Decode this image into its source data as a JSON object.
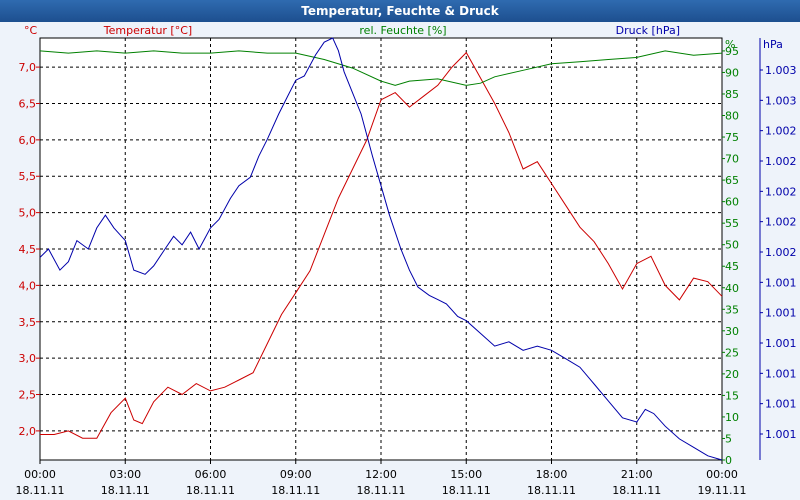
{
  "window": {
    "title": "Temperatur, Feuchte & Druck"
  },
  "colors": {
    "temperature": "#cc0000",
    "humidity": "#008000",
    "pressure": "#0000aa",
    "title_bar": "#1d4f8f"
  },
  "chart_data": {
    "type": "line",
    "title": "Temperatur, Feuchte & Druck",
    "grid": true,
    "x_axis": {
      "ticks": [
        {
          "time": "00:00",
          "date": "18.11.11"
        },
        {
          "time": "03:00",
          "date": "18.11.11"
        },
        {
          "time": "06:00",
          "date": "18.11.11"
        },
        {
          "time": "09:00",
          "date": "18.11.11"
        },
        {
          "time": "12:00",
          "date": "18.11.11"
        },
        {
          "time": "15:00",
          "date": "18.11.11"
        },
        {
          "time": "18:00",
          "date": "18.11.11"
        },
        {
          "time": "21:00",
          "date": "18.11.11"
        },
        {
          "time": "00:00",
          "date": "19.11.11"
        }
      ],
      "range_hours": [
        0,
        24
      ]
    },
    "axes": {
      "temperature": {
        "unit": "°C",
        "label": "Temperatur [°C]",
        "ylim": [
          1.6,
          7.4
        ],
        "ticks": [
          "2,0",
          "2,5",
          "3,0",
          "3,5",
          "4,0",
          "4,5",
          "5,0",
          "5,5",
          "6,0",
          "6,5",
          "7,0"
        ]
      },
      "humidity": {
        "unit": "%",
        "label": "rel. Feuchte [%]",
        "ylim": [
          0,
          98
        ],
        "ticks": [
          "0",
          "5",
          "10",
          "15",
          "20",
          "25",
          "30",
          "35",
          "40",
          "45",
          "50",
          "55",
          "60",
          "65",
          "70",
          "75",
          "80",
          "85",
          "90",
          "95"
        ]
      },
      "pressure": {
        "unit": "hPa",
        "label": "Druck [hPa]",
        "ylim": [
          0,
          1
        ],
        "ticks": [
          "1.001",
          "1.001",
          "1.001",
          "1.001",
          "1.001",
          "1.001",
          "1.002",
          "1.002",
          "1.002",
          "1.002",
          "1.002",
          "1.003",
          "1.003"
        ]
      }
    },
    "series": [
      {
        "name": "Temperatur [°C]",
        "axis": "temperature",
        "x": [
          0,
          0.5,
          1,
          1.5,
          2,
          2.5,
          3,
          3.3,
          3.6,
          4,
          4.5,
          5,
          5.5,
          6,
          6.5,
          7,
          7.5,
          8,
          8.5,
          9,
          9.5,
          10,
          10.5,
          11,
          11.5,
          12,
          12.5,
          13,
          13.5,
          14,
          14.5,
          15,
          15.5,
          16,
          16.5,
          17,
          17.5,
          18,
          18.5,
          19,
          19.5,
          20,
          20.5,
          21,
          21.5,
          22,
          22.5,
          23,
          23.5,
          24
        ],
        "values": [
          1.95,
          1.95,
          2.0,
          1.9,
          1.9,
          2.25,
          2.45,
          2.15,
          2.1,
          2.4,
          2.6,
          2.5,
          2.65,
          2.55,
          2.6,
          2.7,
          2.8,
          3.2,
          3.6,
          3.9,
          4.2,
          4.7,
          5.2,
          5.6,
          6.0,
          6.55,
          6.65,
          6.45,
          6.6,
          6.75,
          7.0,
          7.2,
          6.85,
          6.5,
          6.1,
          5.6,
          5.7,
          5.4,
          5.1,
          4.8,
          4.6,
          4.3,
          3.95,
          4.3,
          4.4,
          4.0,
          3.8,
          4.1,
          4.05,
          3.85
        ]
      },
      {
        "name": "rel. Feuchte [%]",
        "axis": "humidity",
        "x": [
          0,
          1,
          2,
          3,
          4,
          5,
          6,
          7,
          8,
          9,
          10,
          11,
          12,
          12.5,
          13,
          14,
          15,
          15.5,
          16,
          17,
          18,
          19,
          20,
          21,
          22,
          23,
          24
        ],
        "values": [
          95,
          94.5,
          95,
          94.5,
          95,
          94.5,
          94.5,
          95,
          94.5,
          94.5,
          93,
          91,
          88,
          87,
          88,
          88.5,
          87,
          87.5,
          89,
          90.5,
          92,
          92.5,
          93,
          93.5,
          95,
          94,
          94.5
        ]
      },
      {
        "name": "Druck [hPa]",
        "axis": "pressure",
        "x": [
          0,
          0.3,
          0.7,
          1,
          1.3,
          1.7,
          2,
          2.3,
          2.6,
          3,
          3.3,
          3.7,
          4,
          4.4,
          4.7,
          5,
          5.3,
          5.6,
          6,
          6.3,
          6.7,
          7,
          7.4,
          7.7,
          8,
          8.4,
          8.7,
          9,
          9.3,
          9.7,
          10,
          10.3,
          10.5,
          10.7,
          11,
          11.3,
          11.7,
          12,
          12.3,
          12.7,
          13,
          13.3,
          13.7,
          14,
          14.3,
          14.7,
          15,
          15.5,
          16,
          16.5,
          17,
          17.5,
          18,
          18.5,
          19,
          19.5,
          20,
          20.5,
          21,
          21.3,
          21.6,
          22,
          22.5,
          23,
          23.5,
          24
        ],
        "values": [
          0.48,
          0.5,
          0.45,
          0.47,
          0.52,
          0.5,
          0.55,
          0.58,
          0.55,
          0.52,
          0.45,
          0.44,
          0.46,
          0.5,
          0.53,
          0.51,
          0.54,
          0.5,
          0.55,
          0.57,
          0.62,
          0.65,
          0.67,
          0.72,
          0.76,
          0.82,
          0.86,
          0.9,
          0.91,
          0.96,
          0.99,
          1.0,
          0.97,
          0.92,
          0.87,
          0.82,
          0.72,
          0.65,
          0.58,
          0.5,
          0.45,
          0.41,
          0.39,
          0.38,
          0.37,
          0.34,
          0.33,
          0.3,
          0.27,
          0.28,
          0.26,
          0.27,
          0.26,
          0.24,
          0.22,
          0.18,
          0.14,
          0.1,
          0.09,
          0.12,
          0.11,
          0.08,
          0.05,
          0.03,
          0.01,
          0.0
        ]
      }
    ]
  }
}
